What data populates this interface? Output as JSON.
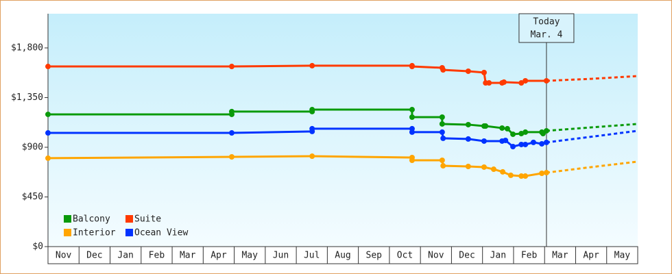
{
  "chart_data": {
    "type": "line",
    "xlim": [
      0,
      19
    ],
    "xticks": [
      {
        "value": 0.5,
        "label": "Nov"
      },
      {
        "value": 1.5,
        "label": "Dec"
      },
      {
        "value": 2.5,
        "label": "Jan"
      },
      {
        "value": 3.5,
        "label": "Feb"
      },
      {
        "value": 4.5,
        "label": "Mar"
      },
      {
        "value": 5.5,
        "label": "Apr"
      },
      {
        "value": 6.5,
        "label": "May"
      },
      {
        "value": 7.5,
        "label": "Jun"
      },
      {
        "value": 8.5,
        "label": "Jul"
      },
      {
        "value": 9.5,
        "label": "Aug"
      },
      {
        "value": 10.5,
        "label": "Sep"
      },
      {
        "value": 11.5,
        "label": "Oct"
      },
      {
        "value": 12.5,
        "label": "Nov"
      },
      {
        "value": 13.5,
        "label": "Dec"
      },
      {
        "value": 14.5,
        "label": "Jan"
      },
      {
        "value": 15.5,
        "label": "Feb"
      },
      {
        "value": 16.5,
        "label": "Mar"
      },
      {
        "value": 17.5,
        "label": "Apr"
      },
      {
        "value": 18.5,
        "label": "May"
      }
    ],
    "ylim": [
      0,
      2110
    ],
    "yticks": [
      {
        "value": 0,
        "label": "$0"
      },
      {
        "value": 450,
        "label": "$450"
      },
      {
        "value": 900,
        "label": "$900"
      },
      {
        "value": 1350,
        "label": "$1,350"
      },
      {
        "value": 1800,
        "label": "$1,800"
      }
    ],
    "legend": "lower left",
    "annotation": {
      "x": 16.06,
      "lines": [
        "Today",
        "Mar. 4"
      ]
    },
    "series": [
      {
        "name": "Balcony",
        "color": "#0a9a0a",
        "x": [
          0,
          5.92,
          5.92,
          8.51,
          8.51,
          11.73,
          11.73,
          12.7,
          12.7,
          13.54,
          14.05,
          14.1,
          14.63,
          14.8,
          14.98,
          15.25,
          15.38,
          15.91,
          15.95,
          16.06
        ],
        "values": [
          1198,
          1198,
          1223,
          1223,
          1241,
          1241,
          1173,
          1173,
          1111,
          1105,
          1092,
          1092,
          1074,
          1068,
          1018,
          1024,
          1037,
          1037,
          1024,
          1049
        ],
        "forecast_x": [
          16.06,
          17.5,
          19
        ],
        "forecast_values": [
          1049,
          1080,
          1111
        ]
      },
      {
        "name": "Suite",
        "color": "#ff3a00",
        "x": [
          0,
          5.92,
          8.51,
          11.73,
          11.73,
          12.7,
          12.73,
          13.54,
          14.05,
          14.1,
          14.21,
          14.63,
          14.69,
          15.25,
          15.38,
          16.06
        ],
        "values": [
          1632,
          1632,
          1639,
          1639,
          1632,
          1620,
          1601,
          1589,
          1577,
          1483,
          1483,
          1483,
          1490,
          1483,
          1502,
          1502
        ],
        "forecast_x": [
          16.06,
          17.5,
          19
        ],
        "forecast_values": [
          1502,
          1520,
          1545
        ]
      },
      {
        "name": "Interior",
        "color": "#ffa500",
        "x": [
          0,
          5.92,
          8.51,
          11.73,
          11.73,
          12.7,
          12.73,
          13.54,
          14.05,
          14.36,
          14.65,
          14.91,
          15.25,
          15.38,
          15.91,
          16.06
        ],
        "values": [
          801,
          813,
          819,
          807,
          782,
          782,
          732,
          726,
          720,
          701,
          677,
          646,
          639,
          639,
          664,
          670
        ],
        "forecast_x": [
          16.06,
          17.5,
          19
        ],
        "forecast_values": [
          670,
          720,
          770
        ]
      },
      {
        "name": "Ocean View",
        "color": "#0033ff",
        "x": [
          0,
          5.92,
          8.51,
          8.51,
          11.73,
          11.73,
          12.7,
          12.73,
          13.54,
          14.05,
          14.63,
          14.74,
          14.98,
          15.25,
          15.38,
          15.64,
          15.91,
          16.06
        ],
        "values": [
          1030,
          1030,
          1043,
          1068,
          1068,
          1037,
          1037,
          981,
          975,
          956,
          956,
          962,
          906,
          925,
          925,
          944,
          931,
          944
        ],
        "forecast_x": [
          16.06,
          17.5,
          19
        ],
        "forecast_values": [
          944,
          995,
          1049
        ]
      }
    ]
  }
}
